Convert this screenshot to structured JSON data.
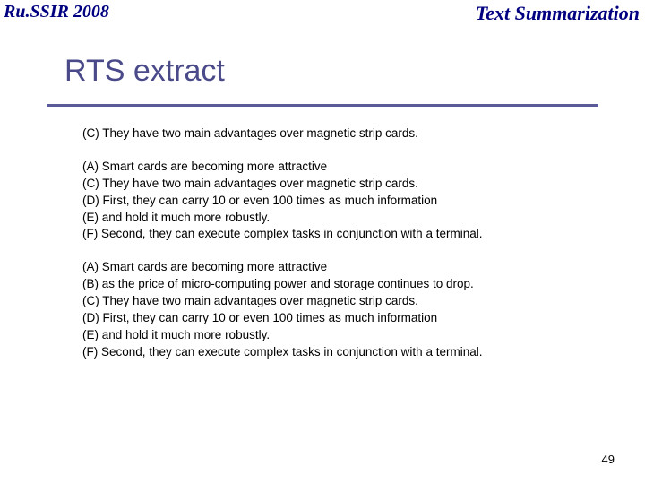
{
  "header": {
    "left": "Ru.SSIR 2008",
    "right": "Text Summarization"
  },
  "title": "RTS extract",
  "groups": [
    {
      "lines": [
        "(C) They have two main advantages over magnetic strip cards."
      ]
    },
    {
      "lines": [
        "(A) Smart cards are becoming  more attractive",
        "(C) They have two main advantages over magnetic strip cards.",
        "(D) First, they can carry 10 or even 100 times as much information",
        "(E) and hold it much more robustly.",
        "(F) Second, they can execute complex tasks in conjunction with a terminal."
      ]
    },
    {
      "lines": [
        "(A) Smart cards are becoming  more attractive",
        "(B) as the price of micro-computing power and storage continues to drop.",
        "(C) They have two main advantages over magnetic strip cards.",
        "(D) First, they can carry 10 or even 100 times as much information",
        "(E) and hold it much more robustly.",
        "(F) Second, they can execute complex tasks in conjunction with a terminal."
      ]
    }
  ],
  "slide_number": "49",
  "colors": {
    "header_text": "#000080",
    "title_text": "#4a4a8a",
    "rule": "#5a5a99",
    "body_text": "#000000",
    "background": "#ffffff"
  },
  "fonts": {
    "header_family": "Comic Sans MS",
    "title_family": "Verdana",
    "body_family": "Verdana",
    "title_size_pt": 26,
    "body_size_pt": 10
  }
}
